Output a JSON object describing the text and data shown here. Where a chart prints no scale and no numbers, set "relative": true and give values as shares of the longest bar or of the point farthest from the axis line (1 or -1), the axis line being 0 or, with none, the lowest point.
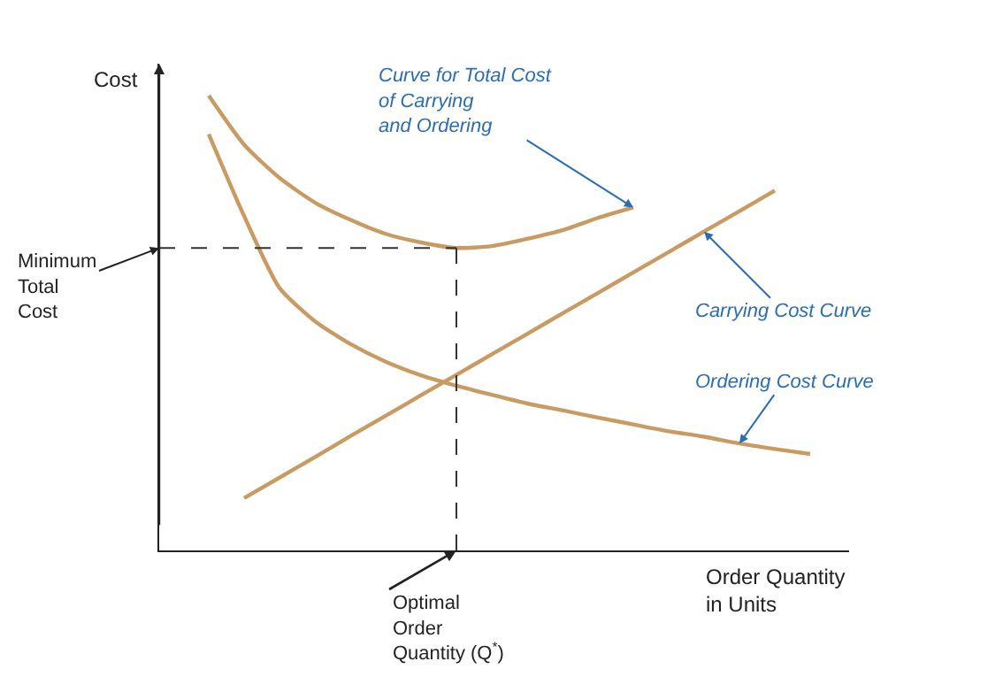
{
  "chart_data": {
    "type": "line",
    "relative": true,
    "xlabel": "Order Quantity\nin Units",
    "ylabel": "Cost",
    "categories": [
      null,
      null,
      null,
      null,
      null,
      null,
      null,
      null,
      null,
      null,
      null,
      null,
      null,
      null,
      null,
      null,
      null,
      null
    ],
    "series": [
      {
        "color": "#c99a62",
        "values": [
          1.0,
          0.892,
          0.819,
          0.765,
          0.727,
          0.696,
          0.677,
          0.665,
          0.669,
          0.685,
          0.704,
          0.731,
          0.754,
          null,
          null,
          null,
          null,
          null
        ]
      },
      {
        "color": "#c99a62",
        "values": [
          0.915,
          0.735,
          0.577,
          0.504,
          0.454,
          0.415,
          0.385,
          0.362,
          0.342,
          0.323,
          0.308,
          0.292,
          0.277,
          0.262,
          0.25,
          0.235,
          0.223,
          0.212
        ]
      },
      {
        "color": "#c99a62",
        "values": [
          null,
          0.115,
          0.16,
          0.205,
          0.251,
          0.296,
          0.341,
          0.386,
          0.431,
          0.476,
          0.521,
          0.566,
          0.611,
          0.656,
          0.701,
          0.746,
          0.791,
          null
        ]
      }
    ],
    "ref_lines": [
      {
        "axis": "y",
        "value": 0.665,
        "label": "Minimum\nTotal\nCost",
        "color": "#333333",
        "line_style": "dashed"
      }
    ],
    "annotations": [
      "Curve for Total Cost\nof Carrying\nand Ordering",
      "Carrying Cost Curve",
      "Ordering Cost Curve",
      "Optimal\nOrder\nQuantity (Q$^{*}$)"
    ],
    "marker": "none",
    "line_style": "solid"
  }
}
